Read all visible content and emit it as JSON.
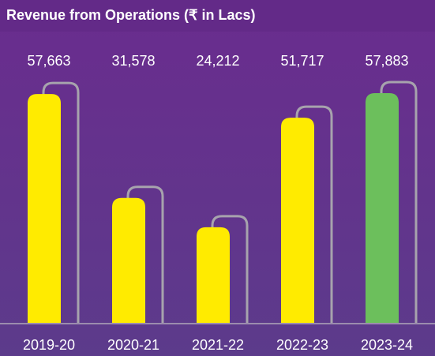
{
  "chart_data": {
    "type": "bar",
    "title": "Revenue from Operations (₹ in Lacs)",
    "categories": [
      "2019-20",
      "2020-21",
      "2021-22",
      "2022-23",
      "2023-24"
    ],
    "values": [
      57663,
      31578,
      24212,
      51717,
      57883
    ],
    "value_labels": [
      "57,663",
      "31,578",
      "24,212",
      "51,717",
      "57,883"
    ],
    "colors": [
      "#ffeb00",
      "#ffeb00",
      "#ffeb00",
      "#ffeb00",
      "#6cbf5c"
    ]
  }
}
